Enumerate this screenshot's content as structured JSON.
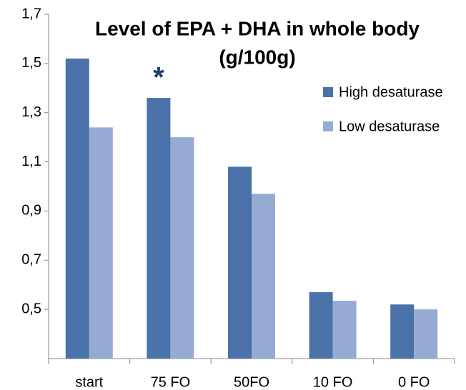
{
  "chart_data": {
    "type": "bar",
    "title": [
      "Level of EPA + DHA in whole body",
      "(g/100g)"
    ],
    "categories": [
      "start",
      "75 FO",
      "50FO",
      "10 FO",
      "0 FO"
    ],
    "series": [
      {
        "name": "High desaturase",
        "color": "#4a72a8",
        "values": [
          1.52,
          1.36,
          1.08,
          0.57,
          0.52
        ]
      },
      {
        "name": "Low desaturase",
        "color": "#95abd3",
        "values": [
          1.24,
          1.2,
          0.97,
          0.535,
          0.5
        ]
      }
    ],
    "ylim": [
      0.3,
      1.7
    ],
    "yticks": [
      {
        "value": 0.5,
        "label": "0,5"
      },
      {
        "value": 0.7,
        "label": "0,7"
      },
      {
        "value": 0.9,
        "label": "0,9"
      },
      {
        "value": 1.1,
        "label": "1,1"
      },
      {
        "value": 1.3,
        "label": "1,3"
      },
      {
        "value": 1.5,
        "label": "1,5"
      },
      {
        "value": 1.7,
        "label": "1,7"
      }
    ],
    "annotations": [
      {
        "text": "*",
        "category": 1,
        "series": 0
      }
    ],
    "legend": "upper right"
  }
}
